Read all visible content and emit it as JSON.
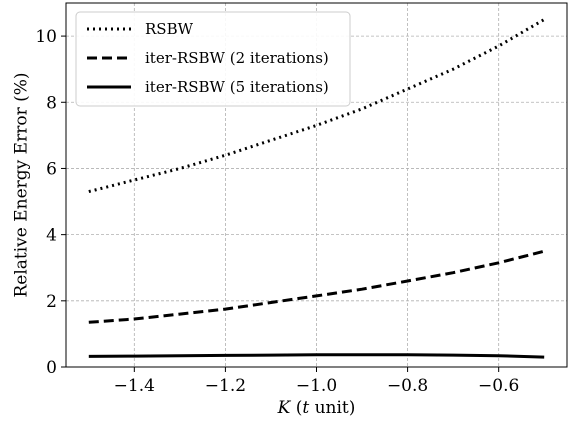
{
  "chart_data": {
    "type": "line",
    "xlabel_italic": "K",
    "xlabel_rest": " (",
    "xlabel_unit_italic": "t",
    "xlabel_end": " unit)",
    "ylabel": "Relative Energy Error (%)",
    "xlim": [
      -1.55,
      -0.45
    ],
    "ylim": [
      0,
      11
    ],
    "xticks": [
      -1.4,
      -1.2,
      -1.0,
      -0.8,
      -0.6
    ],
    "xtick_labels": [
      "−1.4",
      "−1.2",
      "−1.0",
      "−0.8",
      "−0.6"
    ],
    "yticks": [
      0,
      2,
      4,
      6,
      8,
      10
    ],
    "ytick_labels": [
      "0",
      "2",
      "4",
      "6",
      "8",
      "10"
    ],
    "grid": true,
    "legend_position": "top-left",
    "x": [
      -1.5,
      -1.4,
      -1.3,
      -1.2,
      -1.1,
      -1.0,
      -0.9,
      -0.8,
      -0.7,
      -0.6,
      -0.5
    ],
    "series": [
      {
        "name": "RSBW",
        "style": "dotted",
        "color": "#000000",
        "values": [
          5.3,
          5.65,
          6.0,
          6.4,
          6.85,
          7.3,
          7.8,
          8.4,
          9.0,
          9.7,
          10.5
        ]
      },
      {
        "name": "iter-RSBW (2 iterations)",
        "style": "dashed",
        "color": "#000000",
        "values": [
          1.35,
          1.45,
          1.6,
          1.75,
          1.95,
          2.15,
          2.35,
          2.6,
          2.85,
          3.15,
          3.5
        ]
      },
      {
        "name": "iter-RSBW (5 iterations)",
        "style": "solid",
        "color": "#000000",
        "values": [
          0.32,
          0.33,
          0.34,
          0.35,
          0.36,
          0.37,
          0.37,
          0.37,
          0.36,
          0.34,
          0.3
        ]
      }
    ]
  }
}
